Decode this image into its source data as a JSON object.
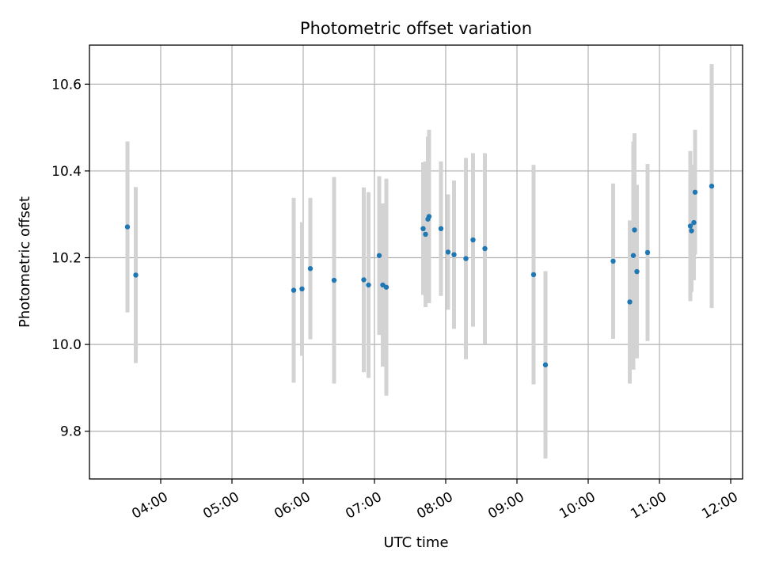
{
  "chart_data": {
    "type": "scatter",
    "title": "Photometric offset variation",
    "xlabel": "UTC time",
    "ylabel": "Photometric offset",
    "xlim": [
      "03:00",
      "12:10"
    ],
    "ylim": [
      9.69,
      10.69
    ],
    "grid": true,
    "x_ticks": [
      "04:00",
      "05:00",
      "06:00",
      "07:00",
      "08:00",
      "09:00",
      "10:00",
      "11:00",
      "12:00"
    ],
    "y_ticks": [
      9.8,
      10.0,
      10.2,
      10.4,
      10.6
    ],
    "colors": {
      "points": "#1f77b4",
      "errorbars": "#d3d3d3",
      "grid": "#b0b0b0"
    },
    "series": [
      {
        "points": [
          {
            "x": "03:32",
            "y": 10.271,
            "yerr": 0.197
          },
          {
            "x": "03:39",
            "y": 10.16,
            "yerr": 0.203
          },
          {
            "x": "05:52",
            "y": 10.125,
            "yerr": 0.213
          },
          {
            "x": "05:59",
            "y": 10.128,
            "yerr": 0.154
          },
          {
            "x": "06:06",
            "y": 10.175,
            "yerr": 0.163
          },
          {
            "x": "06:26",
            "y": 10.148,
            "yerr": 0.238
          },
          {
            "x": "06:51",
            "y": 10.149,
            "yerr": 0.213
          },
          {
            "x": "06:55",
            "y": 10.137,
            "yerr": 0.214
          },
          {
            "x": "07:04",
            "y": 10.205,
            "yerr": 0.183
          },
          {
            "x": "07:07",
            "y": 10.137,
            "yerr": 0.188
          },
          {
            "x": "07:10",
            "y": 10.132,
            "yerr": 0.25
          },
          {
            "x": "07:41",
            "y": 10.267,
            "yerr": 0.153
          },
          {
            "x": "07:43",
            "y": 10.254,
            "yerr": 0.168
          },
          {
            "x": "07:45",
            "y": 10.289,
            "yerr": 0.19
          },
          {
            "x": "07:46",
            "y": 10.295,
            "yerr": 0.2
          },
          {
            "x": "07:56",
            "y": 10.267,
            "yerr": 0.155
          },
          {
            "x": "08:02",
            "y": 10.213,
            "yerr": 0.133
          },
          {
            "x": "08:07",
            "y": 10.207,
            "yerr": 0.171
          },
          {
            "x": "08:17",
            "y": 10.198,
            "yerr": 0.232
          },
          {
            "x": "08:23",
            "y": 10.241,
            "yerr": 0.2
          },
          {
            "x": "08:33",
            "y": 10.221,
            "yerr": 0.22
          },
          {
            "x": "09:14",
            "y": 10.161,
            "yerr": 0.253
          },
          {
            "x": "09:24",
            "y": 9.953,
            "yerr": 0.216
          },
          {
            "x": "10:21",
            "y": 10.192,
            "yerr": 0.179
          },
          {
            "x": "10:35",
            "y": 10.098,
            "yerr": 0.188
          },
          {
            "x": "10:38",
            "y": 10.205,
            "yerr": 0.263
          },
          {
            "x": "10:39",
            "y": 10.264,
            "yerr": 0.223
          },
          {
            "x": "10:41",
            "y": 10.168,
            "yerr": 0.2
          },
          {
            "x": "10:50",
            "y": 10.212,
            "yerr": 0.204
          },
          {
            "x": "11:26",
            "y": 10.273,
            "yerr": 0.173
          },
          {
            "x": "11:27",
            "y": 10.262,
            "yerr": 0.141
          },
          {
            "x": "11:29",
            "y": 10.281,
            "yerr": 0.133
          },
          {
            "x": "11:30",
            "y": 10.351,
            "yerr": 0.144
          },
          {
            "x": "11:44",
            "y": 10.365,
            "yerr": 0.281
          }
        ]
      }
    ]
  }
}
